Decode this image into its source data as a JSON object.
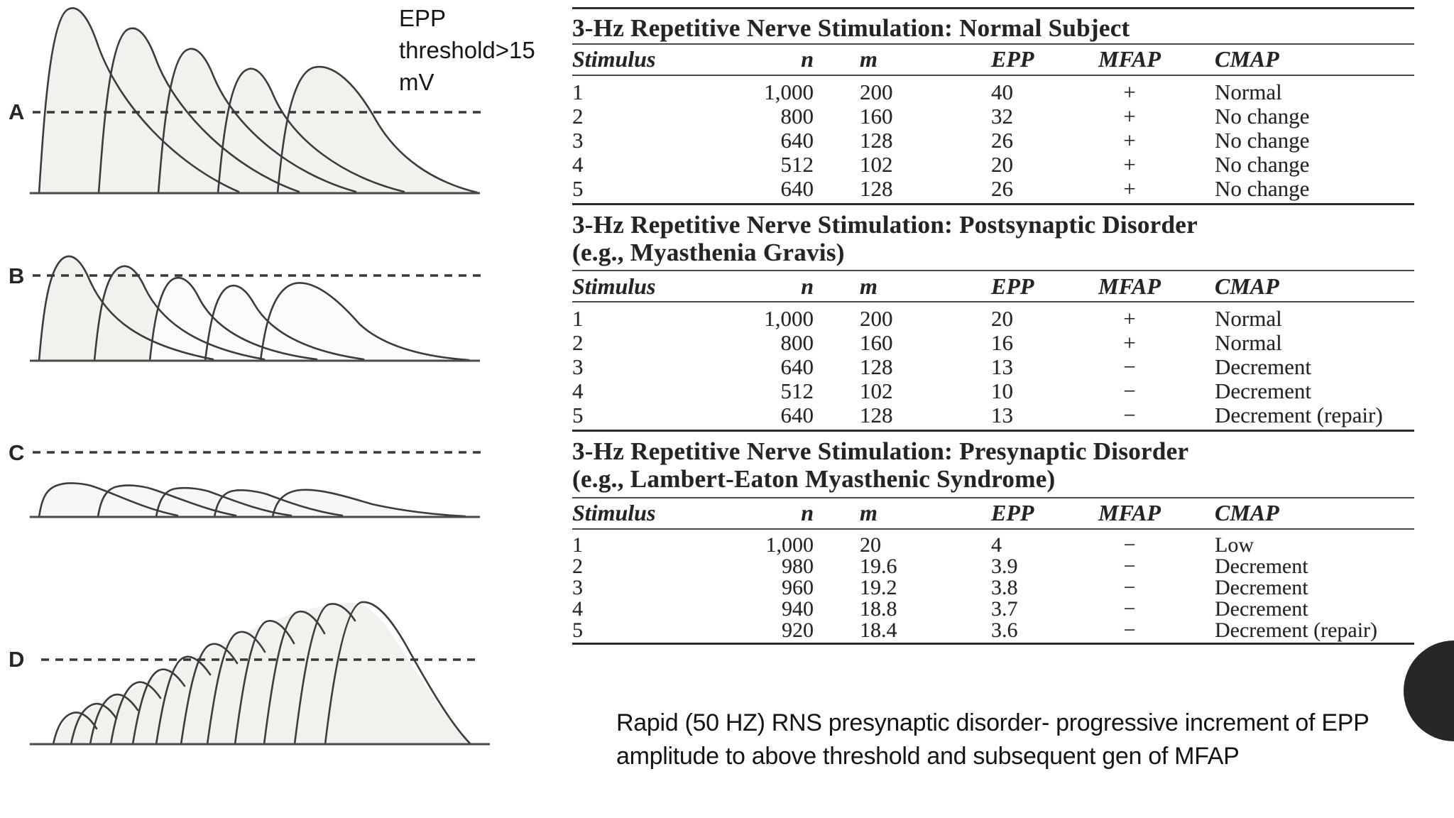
{
  "figure": {
    "threshold_note": "EPP threshold>15 mV",
    "trace_labels": [
      "A",
      "B",
      "C",
      "D"
    ]
  },
  "tables": [
    {
      "title": "3-Hz Repetitive Nerve Stimulation: Normal Subject",
      "subtitle": "",
      "columns": [
        "Stimulus",
        "n",
        "m",
        "EPP",
        "MFAP",
        "CMAP"
      ],
      "rows": [
        [
          "1",
          "1,000",
          "200",
          "40",
          "+",
          "Normal"
        ],
        [
          "2",
          "800",
          "160",
          "32",
          "+",
          "No change"
        ],
        [
          "3",
          "640",
          "128",
          "26",
          "+",
          "No change"
        ],
        [
          "4",
          "512",
          "102",
          "20",
          "+",
          "No change"
        ],
        [
          "5",
          "640",
          "128",
          "26",
          "+",
          "No change"
        ]
      ]
    },
    {
      "title": "3-Hz Repetitive Nerve Stimulation: Postsynaptic Disorder",
      "subtitle": "(e.g., Myasthenia Gravis)",
      "columns": [
        "Stimulus",
        "n",
        "m",
        "EPP",
        "MFAP",
        "CMAP"
      ],
      "rows": [
        [
          "1",
          "1,000",
          "200",
          "20",
          "+",
          "Normal"
        ],
        [
          "2",
          "800",
          "160",
          "16",
          "+",
          "Normal"
        ],
        [
          "3",
          "640",
          "128",
          "13",
          "−",
          "Decrement"
        ],
        [
          "4",
          "512",
          "102",
          "10",
          "−",
          "Decrement"
        ],
        [
          "5",
          "640",
          "128",
          "13",
          "−",
          "Decrement (repair)"
        ]
      ]
    },
    {
      "title": "3-Hz Repetitive Nerve Stimulation: Presynaptic Disorder",
      "subtitle": "(e.g., Lambert-Eaton Myasthenic Syndrome)",
      "columns": [
        "Stimulus",
        "n",
        "m",
        "EPP",
        "MFAP",
        "CMAP"
      ],
      "rows": [
        [
          "1",
          "1,000",
          "20",
          "4",
          "−",
          "Low"
        ],
        [
          "2",
          "980",
          "19.6",
          "3.9",
          "−",
          "Decrement"
        ],
        [
          "3",
          "960",
          "19.2",
          "3.8",
          "−",
          "Decrement"
        ],
        [
          "4",
          "940",
          "18.8",
          "3.7",
          "−",
          "Decrement"
        ],
        [
          "5",
          "920",
          "18.4",
          "3.6",
          "−",
          "Decrement (repair)"
        ]
      ]
    }
  ],
  "caption": "Rapid (50 HZ) RNS presynaptic disorder- progressive increment of EPP amplitude to above threshold and subsequent gen of MFAP",
  "colors": {
    "ink": "#212121",
    "rule": "#3a3a3a",
    "trace_stroke": "#3c3c3c",
    "trace_fill": "#f2f1ee",
    "circle": "#272727"
  }
}
